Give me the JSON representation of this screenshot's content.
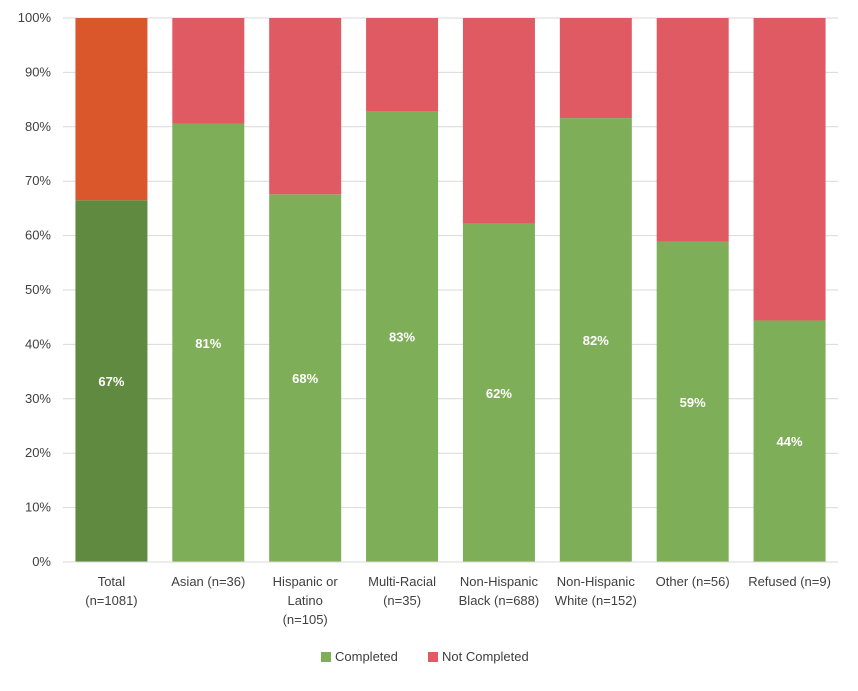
{
  "chart_data": {
    "type": "bar",
    "stacked": true,
    "percent_stacked": true,
    "categories": [
      [
        "Total",
        "(n=1081)"
      ],
      [
        "Asian (n=36)"
      ],
      [
        "Hispanic or",
        "Latino",
        "(n=105)"
      ],
      [
        "Multi-Racial",
        "(n=35)"
      ],
      [
        "Non-Hispanic",
        "Black (n=688)"
      ],
      [
        "Non-Hispanic",
        "White (n=152)"
      ],
      [
        "Other (n=56)"
      ],
      [
        "Refused (n=9)"
      ]
    ],
    "series": [
      {
        "name": "Completed",
        "values": [
          66.5,
          80.6,
          67.6,
          82.9,
          62.2,
          81.6,
          58.9,
          44.4
        ]
      },
      {
        "name": "Not Completed",
        "values": [
          33.5,
          19.4,
          32.4,
          17.1,
          37.8,
          18.4,
          41.1,
          55.6
        ]
      }
    ],
    "data_labels": [
      "67%",
      "81%",
      "68%",
      "83%",
      "62%",
      "82%",
      "59%",
      "44%"
    ],
    "ylim": [
      0,
      100
    ],
    "yticks": [
      "0%",
      "10%",
      "20%",
      "30%",
      "40%",
      "50%",
      "60%",
      "70%",
      "80%",
      "90%",
      "100%"
    ],
    "grid": true,
    "legend_position": "bottom",
    "colors": {
      "completed": "#7fae58",
      "not_completed": "#e05a63",
      "total_completed": "#5f8a3f",
      "total_not_completed": "#d9572b",
      "gridline": "#d9d9d9",
      "tick_text": "#404040",
      "data_label": "#ffffff"
    }
  }
}
